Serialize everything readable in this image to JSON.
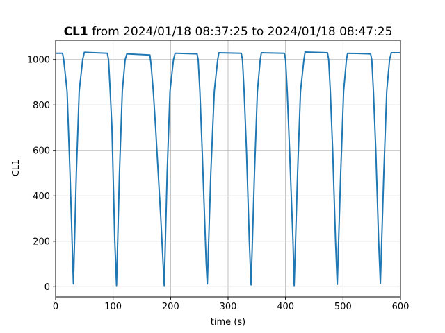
{
  "chart_data": {
    "type": "line",
    "title_bold": "CL1",
    "title_rest": " from 2024/01/18 08:37:25 to 2024/01/18 08:47:25",
    "xlabel": "time (s)",
    "ylabel": "CL1",
    "xlim": [
      0,
      600
    ],
    "ylim": [
      -45,
      1085
    ],
    "xticks": [
      0,
      100,
      200,
      300,
      400,
      500,
      600
    ],
    "xtick_labels": [
      "0",
      "100",
      "200",
      "300",
      "400",
      "500",
      "600"
    ],
    "yticks": [
      0,
      200,
      400,
      600,
      800,
      1000
    ],
    "ytick_labels": [
      "0",
      "200",
      "400",
      "600",
      "800",
      "1000"
    ],
    "grid": true,
    "line_color": "#1f77b4",
    "series": [
      {
        "x": [
          0,
          12,
          14,
          17,
          20,
          25,
          31,
          36,
          41,
          47,
          50,
          90,
          92,
          95,
          98,
          103,
          106,
          111,
          116,
          121,
          124,
          164,
          166,
          170,
          174,
          183,
          189,
          194,
          199,
          205,
          208,
          246,
          248,
          251,
          255,
          262,
          264,
          270,
          276,
          282,
          284,
          323,
          325,
          328,
          332,
          337,
          340,
          346,
          351,
          356,
          358,
          398,
          400,
          403,
          407,
          413,
          415,
          421,
          426,
          432,
          434,
          473,
          475,
          478,
          482,
          487,
          490,
          496,
          501,
          506,
          508,
          548,
          550,
          553,
          557,
          562,
          565,
          571,
          576,
          581,
          584,
          600
        ],
        "y": [
          1028,
          1028,
          1000,
          930,
          860,
          500,
          12,
          500,
          860,
          1000,
          1032,
          1028,
          1000,
          860,
          700,
          200,
          5,
          500,
          860,
          1000,
          1025,
          1020,
          980,
          860,
          700,
          300,
          5,
          500,
          860,
          1000,
          1028,
          1025,
          1000,
          860,
          600,
          100,
          12,
          500,
          860,
          1000,
          1030,
          1028,
          1000,
          860,
          600,
          200,
          8,
          500,
          860,
          1000,
          1030,
          1028,
          1000,
          860,
          600,
          200,
          5,
          500,
          860,
          1000,
          1033,
          1030,
          1000,
          860,
          600,
          200,
          10,
          500,
          860,
          1000,
          1028,
          1025,
          1000,
          860,
          600,
          200,
          15,
          500,
          860,
          1000,
          1030,
          1030
        ]
      }
    ]
  }
}
